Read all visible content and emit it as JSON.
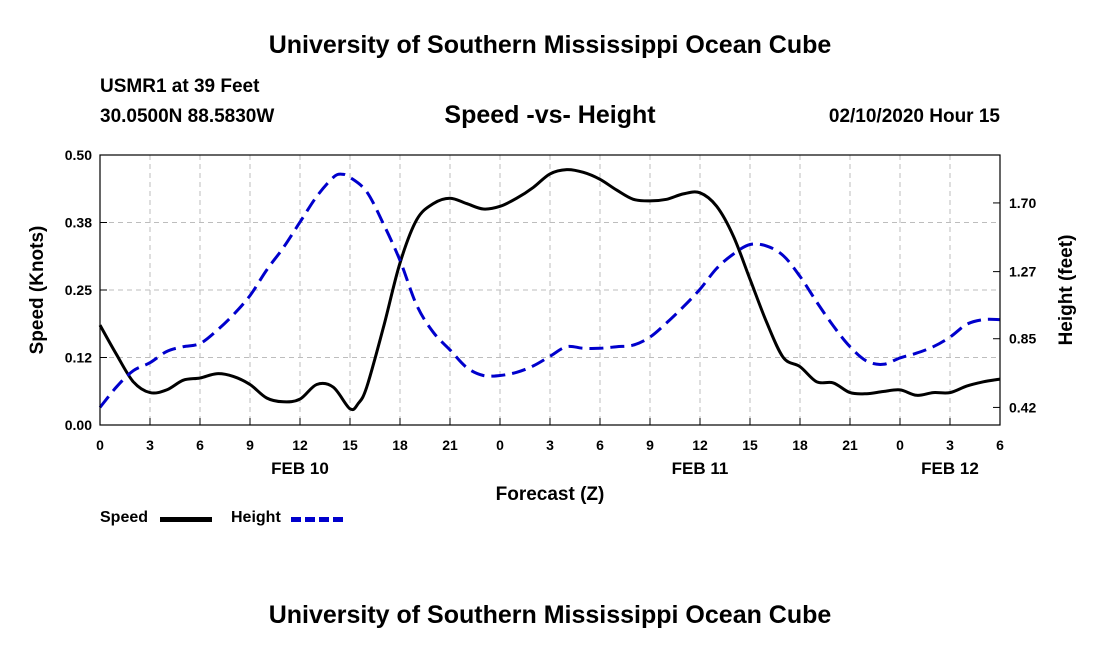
{
  "header": {
    "title_top": "University of Southern Mississippi Ocean Cube",
    "title_bottom": "University of Southern Mississippi Ocean Cube",
    "station": "USMR1 at 39 Feet",
    "location": "30.0500N 88.5830W",
    "datetime": "02/10/2020 Hour 15"
  },
  "legend": [
    {
      "label": "Speed",
      "color": "#000000"
    },
    {
      "label": "Height",
      "color": "#0000cc"
    }
  ],
  "chart_data": {
    "type": "line",
    "title": "Speed -vs- Height",
    "xlabel": "Forecast (Z)",
    "ylabel": "Speed (Knots)",
    "y2label": "Height (feet)",
    "xlim": [
      0,
      54
    ],
    "ylim": [
      0,
      0.5
    ],
    "y2lim": [
      0.31,
      2.0
    ],
    "x_ticks": [
      0,
      3,
      6,
      9,
      12,
      15,
      18,
      21,
      24,
      27,
      30,
      33,
      36,
      39,
      42,
      45,
      48,
      51,
      54
    ],
    "x_tick_labels": [
      "0",
      "3",
      "6",
      "9",
      "12",
      "15",
      "18",
      "21",
      "0",
      "3",
      "6",
      "9",
      "12",
      "15",
      "18",
      "21",
      "0",
      "3",
      "6"
    ],
    "y_ticks": [
      0,
      0.125,
      0.25,
      0.375,
      0.5
    ],
    "y_tick_labels": [
      "0.00",
      "0.12",
      "0.25",
      "0.38",
      "0.50"
    ],
    "y2_ticks": [
      0.42,
      0.85,
      1.27,
      1.7
    ],
    "y2_tick_labels": [
      "0.42",
      "0.85",
      "1.27",
      "1.70"
    ],
    "date_labels": [
      {
        "x": 12,
        "label": "FEB 10"
      },
      {
        "x": 36,
        "label": "FEB 11"
      },
      {
        "x": 51,
        "label": "FEB 12"
      }
    ],
    "grid": true,
    "series": [
      {
        "name": "Speed",
        "axis": "left",
        "color": "#000000",
        "dash": "solid",
        "x": [
          0,
          1,
          2,
          3,
          4,
          5,
          6,
          7,
          8,
          9,
          10,
          11,
          12,
          13,
          14,
          15,
          15.5,
          16,
          17,
          18,
          19,
          20,
          21,
          22,
          23,
          24,
          25,
          26,
          27,
          28,
          29,
          30,
          31,
          32,
          33,
          34,
          35,
          36,
          37,
          38,
          39,
          40,
          41,
          42,
          43,
          44,
          45,
          46,
          47,
          48,
          49,
          50,
          51,
          52,
          53,
          54
        ],
        "values": [
          0.185,
          0.13,
          0.08,
          0.06,
          0.065,
          0.083,
          0.087,
          0.095,
          0.09,
          0.075,
          0.05,
          0.043,
          0.048,
          0.075,
          0.07,
          0.03,
          0.04,
          0.07,
          0.18,
          0.3,
          0.38,
          0.41,
          0.42,
          0.41,
          0.4,
          0.405,
          0.42,
          0.44,
          0.465,
          0.473,
          0.468,
          0.455,
          0.435,
          0.418,
          0.415,
          0.418,
          0.428,
          0.43,
          0.405,
          0.35,
          0.27,
          0.19,
          0.125,
          0.108,
          0.08,
          0.078,
          0.06,
          0.058,
          0.062,
          0.065,
          0.055,
          0.06,
          0.06,
          0.072,
          0.08,
          0.085
        ]
      },
      {
        "name": "Height",
        "axis": "right",
        "color": "#0000cc",
        "dash": "dashed",
        "x": [
          0,
          1,
          2,
          3,
          4,
          5,
          6,
          7,
          8,
          9,
          10,
          11,
          12,
          13,
          14,
          14.5,
          15,
          16,
          17,
          18,
          19,
          20,
          21,
          22,
          23,
          24,
          25,
          26,
          27,
          28,
          29,
          30,
          31,
          32,
          33,
          34,
          35,
          36,
          37,
          38,
          39,
          40,
          41,
          42,
          43,
          44,
          45,
          46,
          47,
          48,
          49,
          50,
          51,
          52,
          53,
          54
        ],
        "values": [
          0.42,
          0.55,
          0.65,
          0.7,
          0.77,
          0.8,
          0.82,
          0.9,
          1.0,
          1.12,
          1.28,
          1.42,
          1.58,
          1.74,
          1.86,
          1.88,
          1.86,
          1.77,
          1.57,
          1.34,
          1.06,
          0.89,
          0.78,
          0.67,
          0.62,
          0.62,
          0.64,
          0.68,
          0.74,
          0.8,
          0.79,
          0.79,
          0.8,
          0.81,
          0.86,
          0.95,
          1.05,
          1.16,
          1.29,
          1.38,
          1.44,
          1.43,
          1.37,
          1.24,
          1.08,
          0.93,
          0.8,
          0.71,
          0.69,
          0.73,
          0.76,
          0.8,
          0.86,
          0.94,
          0.97,
          0.97
        ]
      }
    ]
  }
}
